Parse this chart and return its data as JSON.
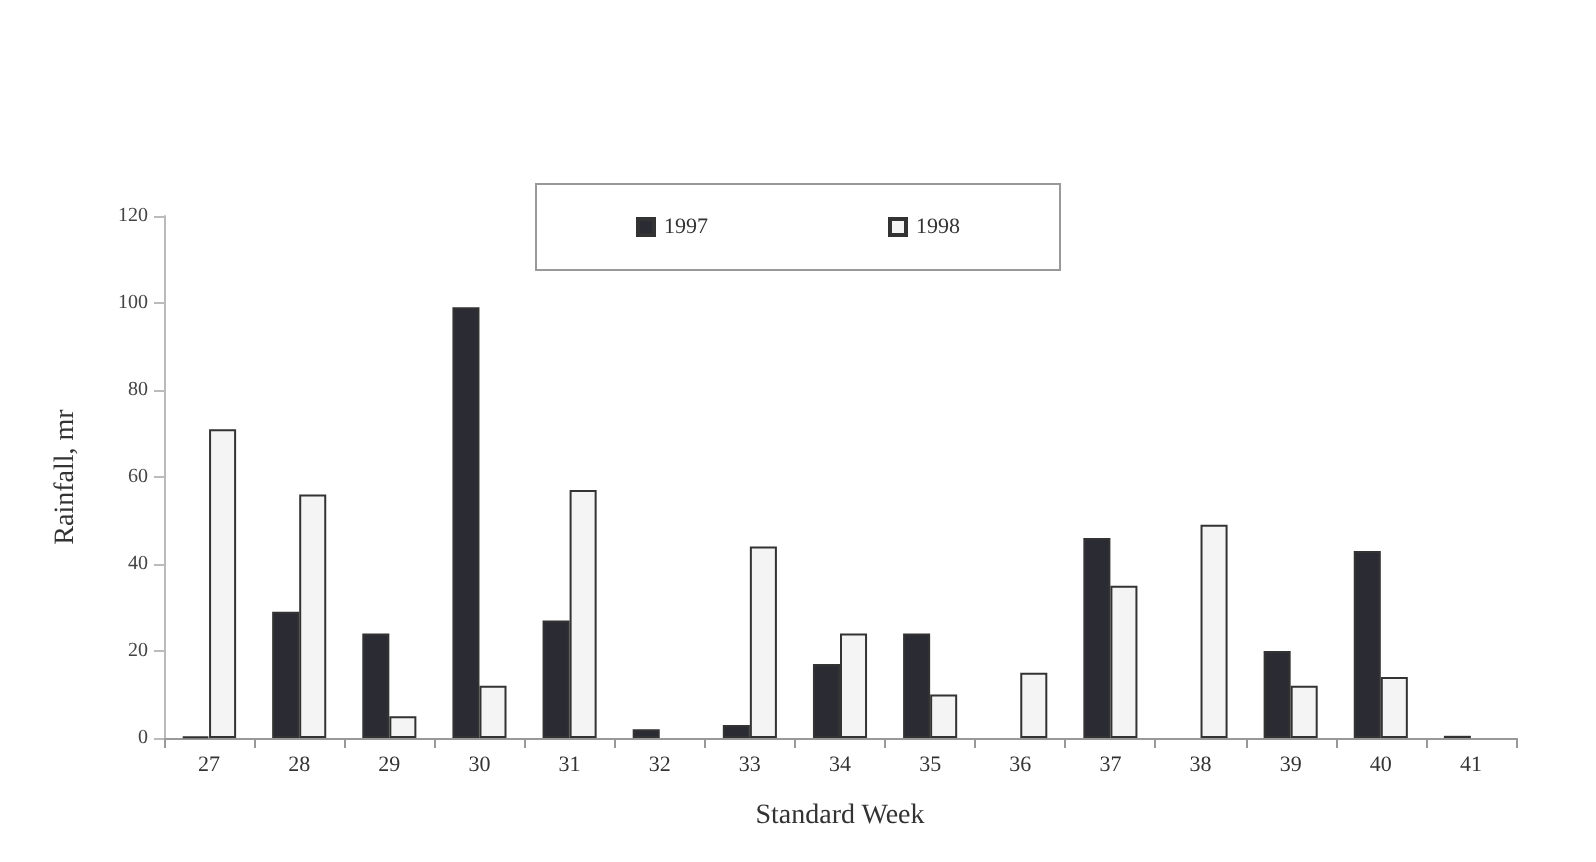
{
  "chart_data": {
    "type": "bar",
    "xlabel": "Standard Week",
    "ylabel": "Rainfall, mr",
    "categories": [
      "27",
      "28",
      "29",
      "30",
      "31",
      "32",
      "33",
      "34",
      "35",
      "36",
      "37",
      "38",
      "39",
      "40",
      "41"
    ],
    "series": [
      {
        "name": "1997",
        "color": "#2b2b33",
        "values": [
          0.3,
          29,
          24,
          99,
          27,
          2,
          3,
          17,
          24,
          null,
          46,
          null,
          20,
          43,
          0.5
        ]
      },
      {
        "name": "1998",
        "color": "#f4f4f4",
        "values": [
          71,
          56,
          5,
          12,
          57,
          null,
          44,
          24,
          10,
          15,
          35,
          49,
          12,
          14,
          null
        ]
      }
    ],
    "ylim": [
      0,
      120
    ],
    "yticks": [
      0,
      20,
      40,
      60,
      80,
      100,
      120
    ],
    "grid": false,
    "legend": "top"
  }
}
